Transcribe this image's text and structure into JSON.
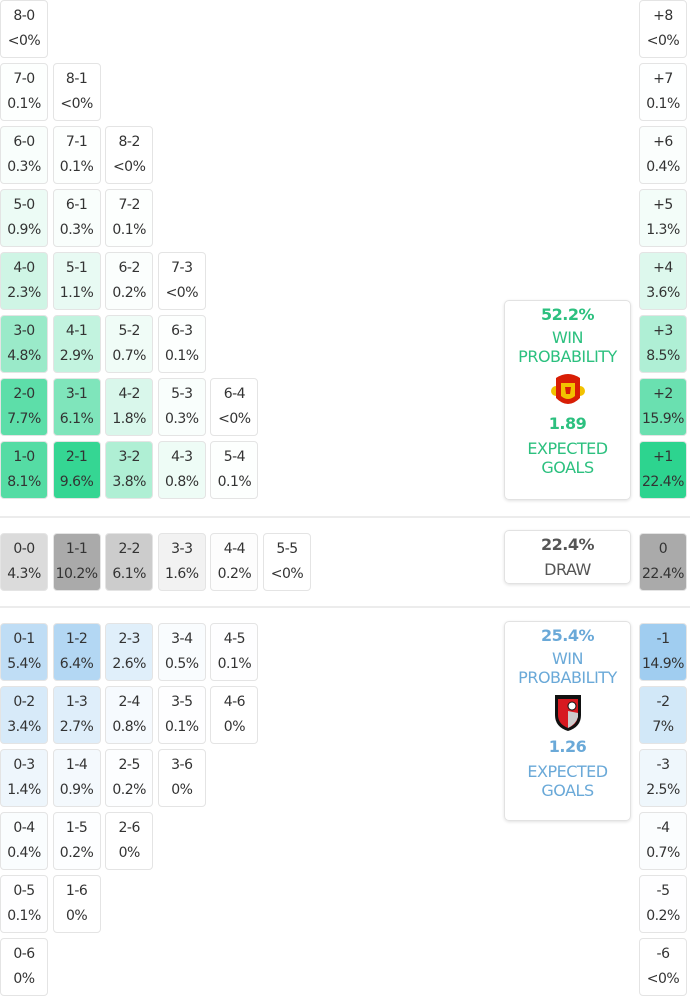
{
  "colors": {
    "home": "#2dd48f",
    "away": "#a0cdf0",
    "draw": "#aaaaaa",
    "home_text": "#2cc07f",
    "away_text": "#6aa9d8",
    "draw_text": "#555555"
  },
  "home": {
    "rows": [
      [
        [
          "8-0",
          "<0%"
        ]
      ],
      [
        [
          "7-0",
          "0.1%"
        ],
        [
          "8-1",
          "<0%"
        ]
      ],
      [
        [
          "6-0",
          "0.3%"
        ],
        [
          "7-1",
          "0.1%"
        ],
        [
          "8-2",
          "<0%"
        ]
      ],
      [
        [
          "5-0",
          "0.9%"
        ],
        [
          "6-1",
          "0.3%"
        ],
        [
          "7-2",
          "0.1%"
        ]
      ],
      [
        [
          "4-0",
          "2.3%"
        ],
        [
          "5-1",
          "1.1%"
        ],
        [
          "6-2",
          "0.2%"
        ],
        [
          "7-3",
          "<0%"
        ]
      ],
      [
        [
          "3-0",
          "4.8%"
        ],
        [
          "4-1",
          "2.9%"
        ],
        [
          "5-2",
          "0.7%"
        ],
        [
          "6-3",
          "0.1%"
        ]
      ],
      [
        [
          "2-0",
          "7.7%"
        ],
        [
          "3-1",
          "6.1%"
        ],
        [
          "4-2",
          "1.8%"
        ],
        [
          "5-3",
          "0.3%"
        ],
        [
          "6-4",
          "<0%"
        ]
      ],
      [
        [
          "1-0",
          "8.1%"
        ],
        [
          "2-1",
          "9.6%"
        ],
        [
          "3-2",
          "3.8%"
        ],
        [
          "4-3",
          "0.8%"
        ],
        [
          "5-4",
          "0.1%"
        ]
      ]
    ],
    "margins": [
      [
        "+8",
        "<0%"
      ],
      [
        "+7",
        "0.1%"
      ],
      [
        "+6",
        "0.4%"
      ],
      [
        "+5",
        "1.3%"
      ],
      [
        "+4",
        "3.6%"
      ],
      [
        "+3",
        "8.5%"
      ],
      [
        "+2",
        "15.9%"
      ],
      [
        "+1",
        "22.4%"
      ]
    ],
    "win_probability": "52.2%",
    "win_label_1": "WIN",
    "win_label_2": "PROBABILITY",
    "crest": "manchester-united-crest",
    "expected_goals": "1.89",
    "xg_label_1": "EXPECTED",
    "xg_label_2": "GOALS"
  },
  "draw": {
    "row": [
      [
        "0-0",
        "4.3%"
      ],
      [
        "1-1",
        "10.2%"
      ],
      [
        "2-2",
        "6.1%"
      ],
      [
        "3-3",
        "1.6%"
      ],
      [
        "4-4",
        "0.2%"
      ],
      [
        "5-5",
        "<0%"
      ]
    ],
    "margin": [
      "0",
      "22.4%"
    ],
    "probability": "22.4%",
    "label": "DRAW"
  },
  "away": {
    "rows": [
      [
        [
          "0-1",
          "5.4%"
        ],
        [
          "1-2",
          "6.4%"
        ],
        [
          "2-3",
          "2.6%"
        ],
        [
          "3-4",
          "0.5%"
        ],
        [
          "4-5",
          "0.1%"
        ]
      ],
      [
        [
          "0-2",
          "3.4%"
        ],
        [
          "1-3",
          "2.7%"
        ],
        [
          "2-4",
          "0.8%"
        ],
        [
          "3-5",
          "0.1%"
        ],
        [
          "4-6",
          "0%"
        ]
      ],
      [
        [
          "0-3",
          "1.4%"
        ],
        [
          "1-4",
          "0.9%"
        ],
        [
          "2-5",
          "0.2%"
        ],
        [
          "3-6",
          "0%"
        ]
      ],
      [
        [
          "0-4",
          "0.4%"
        ],
        [
          "1-5",
          "0.2%"
        ],
        [
          "2-6",
          "0%"
        ]
      ],
      [
        [
          "0-5",
          "0.1%"
        ],
        [
          "1-6",
          "0%"
        ]
      ],
      [
        [
          "0-6",
          "0%"
        ]
      ]
    ],
    "margins": [
      [
        "-1",
        "14.9%"
      ],
      [
        "-2",
        "7%"
      ],
      [
        "-3",
        "2.5%"
      ],
      [
        "-4",
        "0.7%"
      ],
      [
        "-5",
        "0.2%"
      ],
      [
        "-6",
        "<0%"
      ]
    ],
    "win_probability": "25.4%",
    "win_label_1": "WIN",
    "win_label_2": "PROBABILITY",
    "crest": "afc-bournemouth-crest",
    "expected_goals": "1.26",
    "xg_label_1": "EXPECTED",
    "xg_label_2": "GOALS"
  }
}
